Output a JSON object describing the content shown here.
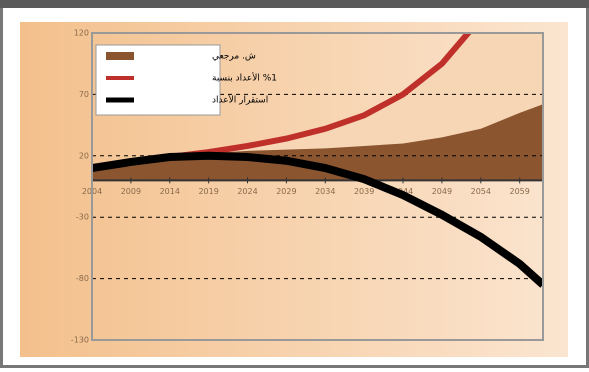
{
  "chart_data": {
    "type": "line",
    "x": [
      2004,
      2009,
      2014,
      2019,
      2024,
      2029,
      2034,
      2039,
      2044,
      2049,
      2054,
      2059,
      2062
    ],
    "series": [
      {
        "name": "ش. مرجعي",
        "color": "#8b5530",
        "fill": true,
        "values": [
          10,
          15,
          19,
          22,
          24,
          25,
          26,
          28,
          30,
          35,
          42,
          55,
          62
        ]
      },
      {
        "name": "%1 الأعداد بنسبة",
        "color": "#c0302b",
        "values": [
          10,
          15,
          19,
          23,
          28,
          34,
          42,
          53,
          70,
          95,
          132,
          null,
          null
        ]
      },
      {
        "name": "استقرار الأعداد",
        "color": "#000000",
        "values": [
          10,
          15,
          19,
          20,
          19,
          16,
          10,
          1,
          -12,
          -28,
          -46,
          -68,
          -85
        ]
      }
    ],
    "xlim": [
      2004,
      2062
    ],
    "ylim": [
      -130,
      120
    ],
    "xticks": [
      2004,
      2009,
      2014,
      2019,
      2024,
      2029,
      2034,
      2039,
      2044,
      2049,
      2054,
      2059
    ],
    "yticks": [
      -130,
      -80,
      -30,
      20,
      70,
      120
    ],
    "grid": true
  }
}
